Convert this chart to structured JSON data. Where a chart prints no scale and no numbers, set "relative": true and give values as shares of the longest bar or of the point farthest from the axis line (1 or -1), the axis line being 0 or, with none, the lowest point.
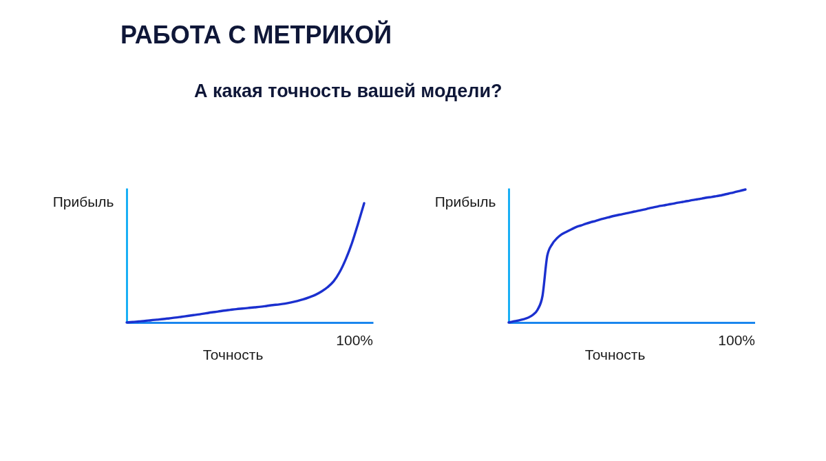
{
  "chart_data": [
    {
      "type": "line",
      "title": "РАБОТА С МЕТРИКОЙ",
      "subtitle": "А какая точность вашей модели?",
      "xlabel": "Точность",
      "ylabel": "Прибыль",
      "relative": true,
      "color": "#1b30cf",
      "annotations": [
        "100%"
      ],
      "categories": [
        null,
        null,
        null,
        null,
        null,
        null,
        null,
        null,
        null,
        null,
        null,
        null,
        null,
        null,
        null,
        null,
        null,
        null,
        null,
        null,
        null,
        null,
        null,
        null,
        null,
        null,
        null,
        null,
        null,
        null,
        null,
        null,
        null,
        null,
        null,
        null,
        null,
        null,
        null,
        null
      ],
      "values": [
        0,
        0.004,
        0.009,
        0.013,
        0.019,
        0.024,
        0.029,
        0.035,
        0.041,
        0.048,
        0.055,
        0.062,
        0.069,
        0.077,
        0.085,
        0.092,
        0.1,
        0.106,
        0.112,
        0.117,
        0.122,
        0.127,
        0.132,
        0.139,
        0.146,
        0.151,
        0.158,
        0.168,
        0.18,
        0.194,
        0.212,
        0.232,
        0.26,
        0.296,
        0.346,
        0.425,
        0.533,
        0.666,
        0.828,
        1
      ]
    },
    {
      "type": "line",
      "xlabel": "Точность",
      "ylabel": "Прибыль",
      "relative": true,
      "color": "#1b30cf",
      "annotations": [
        "100%"
      ],
      "categories": [
        null,
        null,
        null,
        null,
        null,
        null,
        null,
        null,
        null,
        null,
        null,
        null,
        null,
        null,
        null,
        null,
        null,
        null,
        null,
        null,
        null,
        null,
        null,
        null,
        null,
        null,
        null,
        null,
        null,
        null,
        null,
        null,
        null,
        null,
        null,
        null,
        null,
        null,
        null,
        null,
        null,
        null,
        null,
        null,
        null,
        null,
        null,
        null,
        null,
        null
      ],
      "values": [
        0,
        0.008,
        0.015,
        0.024,
        0.036,
        0.057,
        0.097,
        0.2,
        0.504,
        0.589,
        0.634,
        0.664,
        0.683,
        0.701,
        0.718,
        0.73,
        0.743,
        0.754,
        0.764,
        0.775,
        0.784,
        0.794,
        0.803,
        0.811,
        0.818,
        0.826,
        0.834,
        0.841,
        0.849,
        0.858,
        0.866,
        0.874,
        0.88,
        0.887,
        0.893,
        0.901,
        0.907,
        0.913,
        0.92,
        0.926,
        0.932,
        0.939,
        0.944,
        0.95,
        0.956,
        0.965,
        0.973,
        0.982,
        0.991,
        1
      ]
    }
  ]
}
